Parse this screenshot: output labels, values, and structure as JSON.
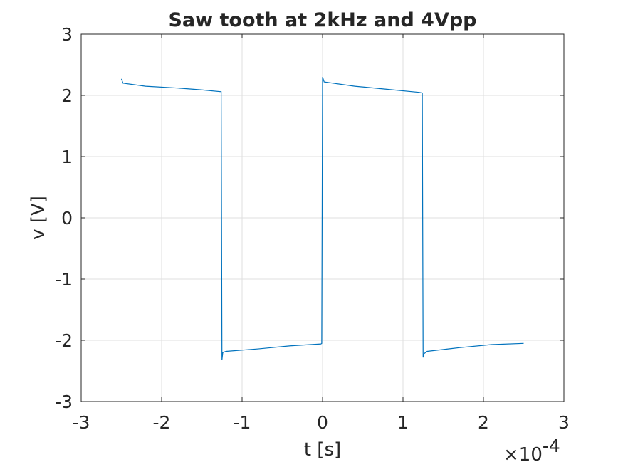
{
  "chart_data": {
    "type": "line",
    "title": "Saw tooth at 2kHz and 4Vpp",
    "xlabel": "t [s]",
    "ylabel": "v [V]",
    "x_exponent_label": "×10",
    "x_exponent_power": "-4",
    "x_exponent": -4,
    "xlim": [
      -3,
      3
    ],
    "ylim": [
      -3,
      3
    ],
    "xticks": [
      -3,
      -2,
      -1,
      0,
      1,
      2,
      3
    ],
    "yticks": [
      -3,
      -2,
      -1,
      0,
      1,
      2,
      3
    ],
    "xtick_labels": [
      "-3",
      "-2",
      "-1",
      "0",
      "1",
      "2",
      "3"
    ],
    "ytick_labels": [
      "-3",
      "-2",
      "-1",
      "0",
      "1",
      "2",
      "3"
    ],
    "grid": true,
    "line_color": "#0072bd",
    "series": [
      {
        "x": [
          -2.5,
          -2.48,
          -2.2,
          -1.8,
          -1.5,
          -1.26,
          -1.25,
          -1.24,
          -1.2,
          -0.8,
          -0.4,
          -0.02,
          -0.01,
          0.0,
          0.02,
          0.4,
          0.8,
          1.2,
          1.24,
          1.25,
          1.26,
          1.3,
          1.7,
          2.1,
          2.5
        ],
        "y": [
          2.27,
          2.2,
          2.15,
          2.12,
          2.09,
          2.06,
          -2.32,
          -2.2,
          -2.18,
          -2.14,
          -2.09,
          -2.06,
          -2.05,
          2.3,
          2.22,
          2.15,
          2.1,
          2.05,
          2.04,
          -2.28,
          -2.22,
          -2.18,
          -2.12,
          -2.07,
          -2.05
        ]
      }
    ]
  }
}
